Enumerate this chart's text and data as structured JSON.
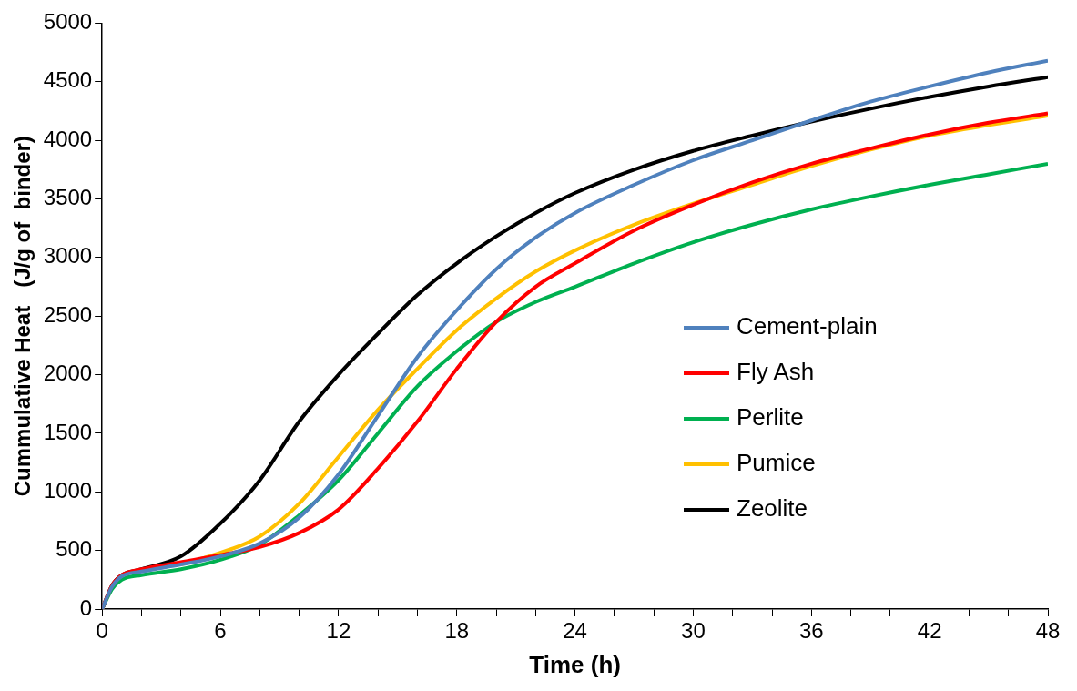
{
  "chart_data": {
    "type": "line",
    "xlabel": "Time (h)",
    "ylabel": "Cummulative Heat   (J/g of  binder)",
    "x": [
      0,
      0.5,
      1,
      2,
      4,
      6,
      8,
      10,
      12,
      14,
      16,
      18,
      20,
      22,
      24,
      27,
      30,
      33,
      36,
      39,
      42,
      45,
      48
    ],
    "series": [
      {
        "name": "Cement-plain",
        "color": "#4f81bd",
        "values": [
          0,
          190,
          280,
          320,
          380,
          450,
          560,
          780,
          1150,
          1650,
          2150,
          2550,
          2900,
          3170,
          3380,
          3620,
          3830,
          4000,
          4170,
          4330,
          4460,
          4580,
          4680
        ]
      },
      {
        "name": "Fly Ash",
        "color": "#ff0000",
        "values": [
          0,
          200,
          290,
          340,
          400,
          460,
          530,
          650,
          850,
          1200,
          1600,
          2050,
          2450,
          2750,
          2950,
          3230,
          3450,
          3640,
          3800,
          3930,
          4050,
          4150,
          4230
        ]
      },
      {
        "name": "Perlite",
        "color": "#00b050",
        "values": [
          0,
          170,
          250,
          290,
          340,
          420,
          550,
          800,
          1100,
          1500,
          1900,
          2200,
          2450,
          2620,
          2750,
          2950,
          3130,
          3280,
          3410,
          3520,
          3620,
          3710,
          3800
        ]
      },
      {
        "name": "Pumice",
        "color": "#ffc000",
        "values": [
          null,
          null,
          null,
          null,
          380,
          480,
          620,
          900,
          1300,
          1700,
          2050,
          2380,
          2650,
          2880,
          3060,
          3280,
          3460,
          3620,
          3780,
          3920,
          4040,
          4130,
          4210
        ]
      },
      {
        "name": "Zeolite",
        "color": "#000000",
        "values": [
          0,
          200,
          290,
          340,
          450,
          730,
          1100,
          1600,
          2000,
          2350,
          2680,
          2950,
          3180,
          3380,
          3550,
          3750,
          3910,
          4040,
          4160,
          4270,
          4370,
          4460,
          4540
        ]
      }
    ],
    "xlim": [
      0,
      48
    ],
    "xticks": [
      0,
      {
        "value": 2,
        "label": null
      },
      {
        "value": 4,
        "label": null
      },
      6,
      {
        "value": 8,
        "label": null
      },
      {
        "value": 10,
        "label": null
      },
      12,
      {
        "value": 14,
        "label": null
      },
      {
        "value": 16,
        "label": null
      },
      18,
      {
        "value": 20,
        "label": null
      },
      {
        "value": 22,
        "label": null
      },
      24,
      {
        "value": 26,
        "label": null
      },
      {
        "value": 28,
        "label": null
      },
      30,
      {
        "value": 32,
        "label": null
      },
      {
        "value": 34,
        "label": null
      },
      36,
      {
        "value": 38,
        "label": null
      },
      {
        "value": 40,
        "label": null
      },
      42,
      {
        "value": 44,
        "label": null
      },
      {
        "value": 46,
        "label": null
      },
      48
    ],
    "ylim": [
      0,
      5000
    ],
    "yticks": [
      0,
      500,
      1000,
      1500,
      2000,
      2500,
      3000,
      3500,
      4000,
      4500,
      5000
    ],
    "grid": false,
    "legend": "right",
    "marker": "none",
    "line_style": "solid"
  }
}
